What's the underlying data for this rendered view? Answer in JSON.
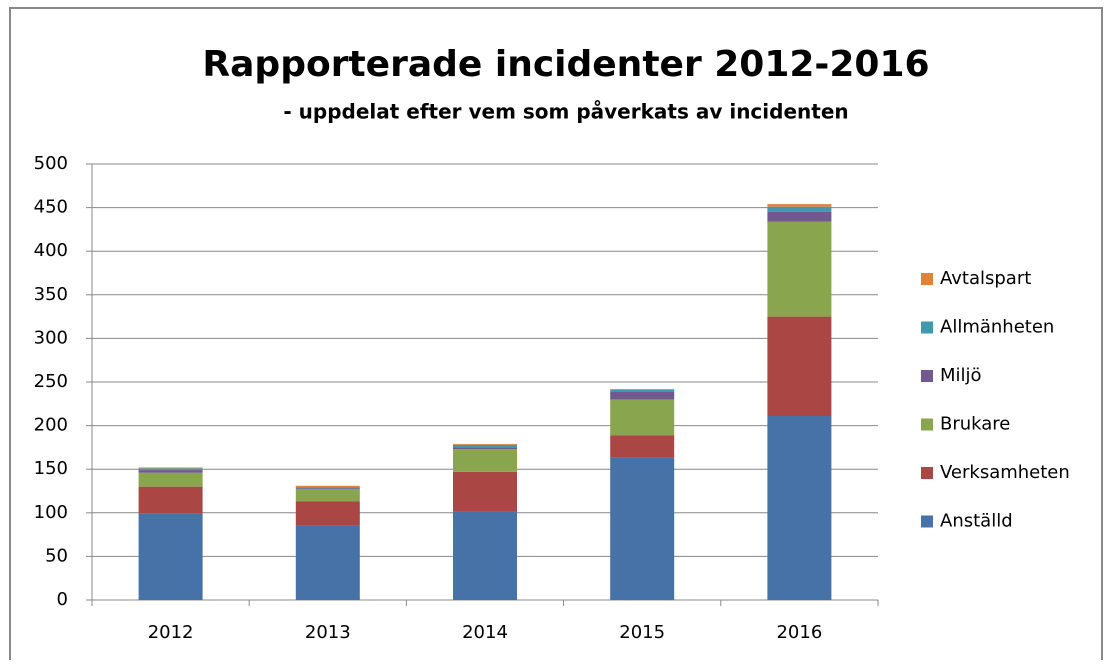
{
  "chart_data": {
    "type": "stacked_bar",
    "title": "Rapporterade incidenter 2012-2016",
    "subtitle": "- uppdelat efter vem som påverkats av incidenten",
    "categories": [
      "2012",
      "2013",
      "2014",
      "2015",
      "2016"
    ],
    "series": [
      {
        "name": "Anställd",
        "color": "#4672a8",
        "values": [
          99,
          85,
          102,
          163,
          211
        ]
      },
      {
        "name": "Verksamheten",
        "color": "#aa4643",
        "values": [
          31,
          28,
          45,
          26,
          114
        ]
      },
      {
        "name": "Brukare",
        "color": "#89a54e",
        "values": [
          16,
          14,
          26,
          41,
          109
        ]
      },
      {
        "name": "Miljö",
        "color": "#71588f",
        "values": [
          3,
          1,
          2,
          9,
          11
        ]
      },
      {
        "name": "Allmänheten",
        "color": "#4198af",
        "values": [
          2,
          1,
          3,
          2,
          6
        ]
      },
      {
        "name": "Avtalspart",
        "color": "#db843d",
        "values": [
          1,
          2,
          1,
          1,
          3
        ]
      }
    ],
    "ylim": [
      0,
      500
    ],
    "yticks": [
      0,
      50,
      100,
      150,
      200,
      250,
      300,
      350,
      400,
      450,
      500
    ],
    "grid": true,
    "legend": "right"
  }
}
